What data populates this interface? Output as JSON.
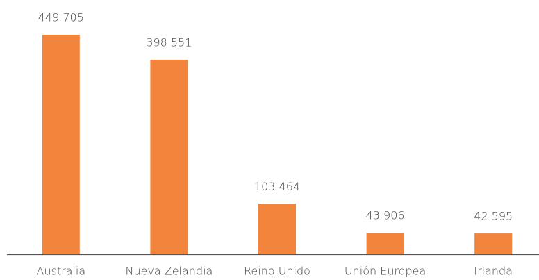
{
  "chart_data": {
    "type": "bar",
    "categories": [
      "Australia",
      "Nueva Zelandia",
      "Reino Unido",
      "Unión Europea",
      "Irlanda"
    ],
    "values": [
      449705,
      398551,
      103464,
      43906,
      42595
    ],
    "value_labels": [
      "449 705",
      "398 551",
      "103 464",
      "43 906",
      "42 595"
    ],
    "color": "#f2843b"
  }
}
